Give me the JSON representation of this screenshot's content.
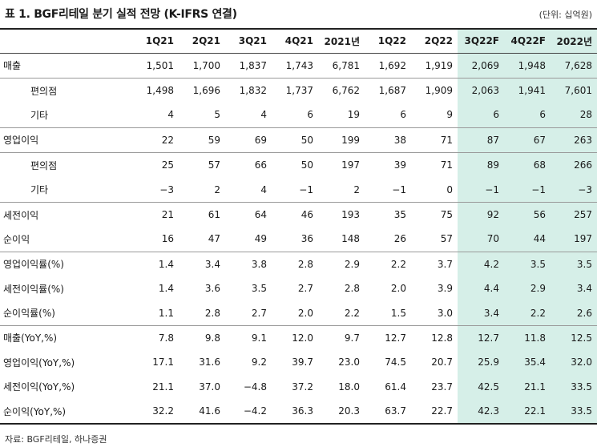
{
  "title": "표 1. BGF리테일 분기 실적 전망 (K-IFRS 연결)",
  "unit": "(단위: 십억원)",
  "source": "자료: BGF리테일, 하나증권",
  "columns": [
    "1Q21",
    "2Q21",
    "3Q21",
    "4Q21",
    "2021년",
    "1Q22",
    "2Q22",
    "3Q22F",
    "4Q22F",
    "2022년"
  ],
  "forecast_columns": [
    "3Q22F",
    "4Q22F",
    "2022년"
  ],
  "rows": [
    {
      "label": "매출",
      "sub": false,
      "group_start": true,
      "values": [
        "1,501",
        "1,700",
        "1,837",
        "1,743",
        "6,781",
        "1,692",
        "1,919",
        "2,069",
        "1,948",
        "7,628"
      ]
    },
    {
      "label": "편의점",
      "sub": true,
      "group_start": true,
      "values": [
        "1,498",
        "1,696",
        "1,832",
        "1,737",
        "6,762",
        "1,687",
        "1,909",
        "2,063",
        "1,941",
        "7,601"
      ]
    },
    {
      "label": "기타",
      "sub": true,
      "group_start": false,
      "values": [
        "4",
        "5",
        "4",
        "6",
        "19",
        "6",
        "9",
        "6",
        "6",
        "28"
      ]
    },
    {
      "label": "영업이익",
      "sub": false,
      "group_start": true,
      "values": [
        "22",
        "59",
        "69",
        "50",
        "199",
        "38",
        "71",
        "87",
        "67",
        "263"
      ]
    },
    {
      "label": "편의점",
      "sub": true,
      "group_start": true,
      "values": [
        "25",
        "57",
        "66",
        "50",
        "197",
        "39",
        "71",
        "89",
        "68",
        "266"
      ]
    },
    {
      "label": "기타",
      "sub": true,
      "group_start": false,
      "values": [
        "−3",
        "2",
        "4",
        "−1",
        "2",
        "−1",
        "0",
        "−1",
        "−1",
        "−3"
      ]
    },
    {
      "label": "세전이익",
      "sub": false,
      "group_start": true,
      "values": [
        "21",
        "61",
        "64",
        "46",
        "193",
        "35",
        "75",
        "92",
        "56",
        "257"
      ]
    },
    {
      "label": "순이익",
      "sub": false,
      "group_start": false,
      "values": [
        "16",
        "47",
        "49",
        "36",
        "148",
        "26",
        "57",
        "70",
        "44",
        "197"
      ]
    },
    {
      "label": "영업이익률(%)",
      "sub": false,
      "group_start": true,
      "values": [
        "1.4",
        "3.4",
        "3.8",
        "2.8",
        "2.9",
        "2.2",
        "3.7",
        "4.2",
        "3.5",
        "3.5"
      ]
    },
    {
      "label": "세전이익률(%)",
      "sub": false,
      "group_start": false,
      "values": [
        "1.4",
        "3.6",
        "3.5",
        "2.7",
        "2.8",
        "2.0",
        "3.9",
        "4.4",
        "2.9",
        "3.4"
      ]
    },
    {
      "label": "순이익률(%)",
      "sub": false,
      "group_start": false,
      "values": [
        "1.1",
        "2.8",
        "2.7",
        "2.0",
        "2.2",
        "1.5",
        "3.0",
        "3.4",
        "2.2",
        "2.6"
      ]
    },
    {
      "label": "매출(YoY,%)",
      "sub": false,
      "group_start": true,
      "values": [
        "7.8",
        "9.8",
        "9.1",
        "12.0",
        "9.7",
        "12.7",
        "12.8",
        "12.7",
        "11.8",
        "12.5"
      ]
    },
    {
      "label": "영업이익(YoY,%)",
      "sub": false,
      "group_start": false,
      "values": [
        "17.1",
        "31.6",
        "9.2",
        "39.7",
        "23.0",
        "74.5",
        "20.7",
        "25.9",
        "35.4",
        "32.0"
      ]
    },
    {
      "label": "세전이익(YoY,%)",
      "sub": false,
      "group_start": false,
      "values": [
        "21.1",
        "37.0",
        "−4.8",
        "37.2",
        "18.0",
        "61.4",
        "23.7",
        "42.5",
        "21.1",
        "33.5"
      ]
    },
    {
      "label": "순이익(YoY,%)",
      "sub": false,
      "group_start": false,
      "values": [
        "32.2",
        "41.6",
        "−4.2",
        "36.3",
        "20.3",
        "63.7",
        "22.7",
        "42.3",
        "22.1",
        "33.5"
      ]
    }
  ],
  "colors": {
    "forecast_shade": "#d6efe8",
    "rule": "#222222"
  }
}
